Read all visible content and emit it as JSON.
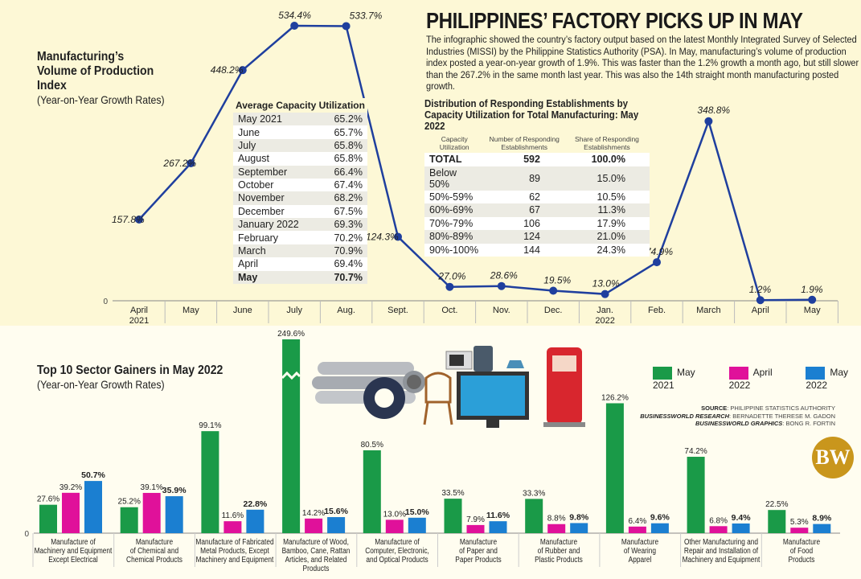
{
  "header": {
    "title": "PHILIPPINES’ FACTORY PICKS UP IN MAY",
    "intro": "The infographic showed the country’s factory output based on the latest Monthly Integrated Survey of Selected Industries (MISSI) by the Philippine Statistics Authority (PSA). In May, manufacturing’s volume of production index posted a year-on-year growth of 1.9%. This was faster than the 1.2% growth a month ago, but still slower than the 267.2% in the same month last year. This was also the 14th straight month manufacturing posted growth."
  },
  "avg_capacity": {
    "title": "Average Capacity Utilization",
    "rows": [
      [
        "May 2021",
        "65.2%"
      ],
      [
        "June",
        "65.7%"
      ],
      [
        "July",
        "65.8%"
      ],
      [
        "August",
        "65.8%"
      ],
      [
        "September",
        "66.4%"
      ],
      [
        "October",
        "67.4%"
      ],
      [
        "November",
        "68.2%"
      ],
      [
        "December",
        "67.5%"
      ],
      [
        "January 2022",
        "69.3%"
      ],
      [
        "February",
        "70.2%"
      ],
      [
        "March",
        "70.9%"
      ],
      [
        "April",
        "69.4%"
      ],
      [
        "May",
        "70.7%"
      ]
    ]
  },
  "distribution": {
    "title": "Distribution of Responding Establishments by Capacity Utilization for Total Manufacturing: May 2022",
    "headers": [
      "Capacity Utilization",
      "Number of Responding Establishments",
      "Share of Responding Establishments"
    ],
    "rows": [
      [
        "TOTAL",
        "592",
        "100.0%"
      ],
      [
        "Below 50%",
        "89",
        "15.0%"
      ],
      [
        "50%-59%",
        "62",
        "10.5%"
      ],
      [
        "60%-69%",
        "67",
        "11.3%"
      ],
      [
        "70%-79%",
        "106",
        "17.9%"
      ],
      [
        "80%-89%",
        "124",
        "21.0%"
      ],
      [
        "90%-100%",
        "144",
        "24.3%"
      ]
    ]
  },
  "legend": [
    "May 2021",
    "April 2022",
    "May 2022"
  ],
  "credits": {
    "source_label": "SOURCE",
    "source": "PHILIPPINE STATISTICS AUTHORITY",
    "research_label": "BUSINESSWORLD RESEARCH",
    "research": "BERNADETTE THERESE M. GADON",
    "graphics_label": "BUSINESSWORLD GRAPHICS",
    "graphics": "BONG R. FORTIN"
  },
  "logo": "BW",
  "colors": {
    "line": "#1f3f9e",
    "may2021": "#1a9a48",
    "april2022": "#e0119a",
    "may2022": "#1b7fd1",
    "logo": "#c9961c"
  },
  "chart_data": [
    {
      "type": "line",
      "title": "Manufacturing’s Volume of Production Index",
      "subtitle": "(Year-on-Year Growth Rates)",
      "categories": [
        "April 2021",
        "May",
        "June",
        "July",
        "Aug.",
        "Sept.",
        "Oct.",
        "Nov.",
        "Dec.",
        "Jan. 2022",
        "Feb.",
        "March",
        "April",
        "May"
      ],
      "values": [
        157.8,
        267.2,
        448.2,
        534.4,
        533.7,
        124.3,
        27.0,
        28.6,
        19.5,
        13.0,
        74.9,
        348.8,
        1.2,
        1.9
      ],
      "labels": [
        "157.8%",
        "267.2%",
        "448.2%",
        "534.4%",
        "533.7%",
        "124.3%",
        "27.0%",
        "28.6%",
        "19.5%",
        "13.0%",
        "74.9%",
        "348.8%",
        "1.2%",
        "1.9%"
      ],
      "ytick": "0",
      "ylim": [
        0,
        534.4
      ],
      "grid": false
    },
    {
      "type": "bar",
      "title": "Top 10 Sector Gainers in May 2022",
      "subtitle": "(Year-on-Year Growth Rates)",
      "legend": "top-right",
      "ytick": "0",
      "axis_break": true,
      "categories": [
        "Manufacture of Machinery and Equipment Except Electrical",
        "Manufacture of Chemical and Chemical Products",
        "Manufacture of Fabricated Metal Products, Except Machinery and Equipment",
        "Manufacture of Wood, Bamboo, Cane, Rattan Articles, and Related Products",
        "Manufacture of Computer, Electronic, and Optical Products",
        "Manufacture of Paper and Paper Products",
        "Manufacture of Rubber and Plastic Products",
        "Manufacture of Wearing Apparel",
        "Other Manufacturing and Repair and Installation of Machinery and Equipment",
        "Manufacture of Food Products"
      ],
      "category_lines": [
        [
          "Manufacture of",
          "Machinery and Equipment",
          "Except Electrical"
        ],
        [
          "Manufacture",
          "of Chemical and",
          "Chemical Products"
        ],
        [
          "Manufacture of Fabricated",
          "Metal Products, Except",
          "Machinery and Equipment"
        ],
        [
          "Manufacture of Wood,",
          "Bamboo, Cane, Rattan",
          "Articles, and Related Products"
        ],
        [
          "Manufacture of",
          "Computer, Electronic,",
          "and Optical Products"
        ],
        [
          "Manufacture",
          "of Paper and",
          "Paper Products"
        ],
        [
          "Manufacture",
          "of Rubber and",
          "Plastic Products"
        ],
        [
          "Manufacture",
          "of Wearing",
          "Apparel"
        ],
        [
          "Other Manufacturing and",
          "Repair and Installation of",
          "Machinery and Equipment"
        ],
        [
          "Manufacture",
          "of Food",
          "Products"
        ]
      ],
      "series": [
        {
          "name": "May 2021",
          "values": [
            27.6,
            25.2,
            99.1,
            249.6,
            80.5,
            33.5,
            33.3,
            126.2,
            74.2,
            22.5
          ]
        },
        {
          "name": "April 2022",
          "values": [
            39.2,
            39.1,
            11.6,
            14.2,
            13.0,
            7.9,
            8.8,
            6.4,
            6.8,
            5.3
          ]
        },
        {
          "name": "May 2022",
          "values": [
            50.7,
            35.9,
            22.8,
            15.6,
            15.0,
            11.6,
            9.8,
            9.6,
            9.4,
            8.9
          ]
        }
      ]
    }
  ]
}
